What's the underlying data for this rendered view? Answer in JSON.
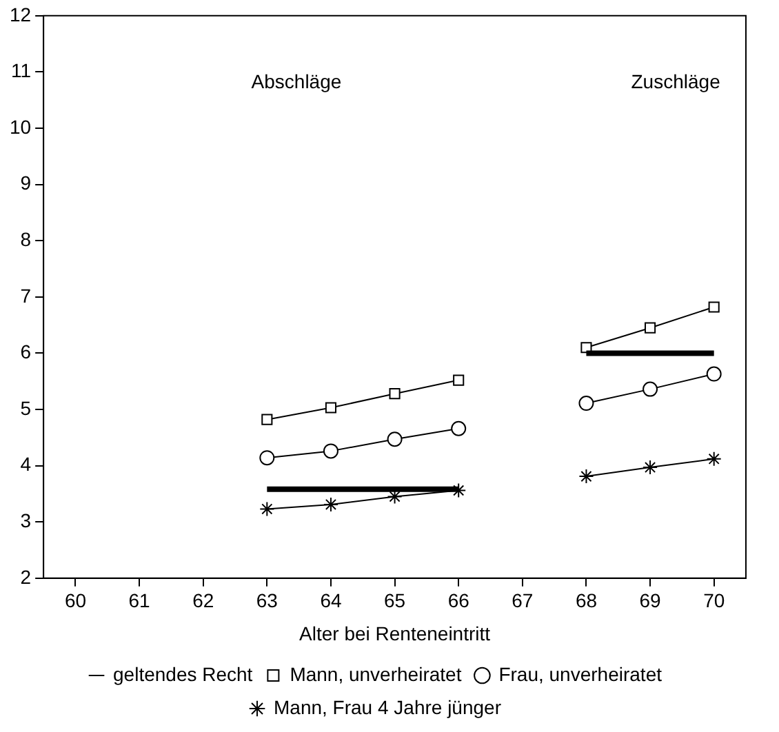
{
  "chart_data": {
    "type": "line",
    "xlabel": "Alter bei Renteneintritt",
    "categories": [
      "60",
      "61",
      "62",
      "63",
      "64",
      "65",
      "66",
      "67",
      "68",
      "69",
      "70"
    ],
    "series": [
      {
        "name": "geltendes Recht",
        "color": "#000000",
        "marker": "none",
        "values": [
          null,
          null,
          null,
          3.58,
          3.58,
          3.58,
          3.58,
          null,
          6.0,
          6.0,
          6.0
        ]
      },
      {
        "name": "Mann, unverheiratet",
        "color": "#000000",
        "marker": "square",
        "values": [
          null,
          null,
          null,
          4.82,
          5.03,
          5.28,
          5.52,
          null,
          6.1,
          6.45,
          6.82
        ]
      },
      {
        "name": "Frau, unverheiratet",
        "color": "#000000",
        "marker": "circle",
        "values": [
          null,
          null,
          null,
          4.14,
          4.26,
          4.47,
          4.66,
          null,
          5.11,
          5.36,
          5.63
        ]
      },
      {
        "name": "Mann, Frau 4 Jahre jünger",
        "color": "#000000",
        "marker": "cross",
        "values": [
          null,
          null,
          null,
          3.23,
          3.31,
          3.45,
          3.56,
          null,
          3.81,
          3.97,
          4.12
        ]
      }
    ],
    "ylim": [
      2,
      12
    ],
    "yticks": [
      2,
      3,
      4,
      5,
      6,
      7,
      8,
      9,
      10,
      11,
      12
    ],
    "grid": false,
    "legend": "bottom",
    "annotations": [
      "Abschläge",
      "Zuschläge"
    ]
  }
}
